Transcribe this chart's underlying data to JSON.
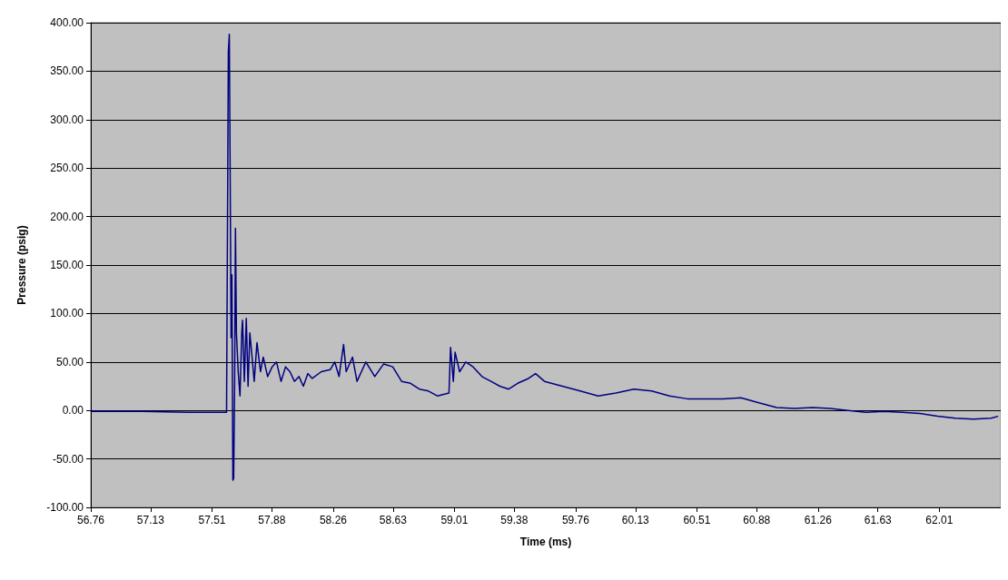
{
  "chart_data": {
    "type": "line",
    "xlabel": "Time (ms)",
    "ylabel": "Pressure (psig)",
    "xlim": [
      56.76,
      62.39
    ],
    "xticks": [
      56.76,
      57.13,
      57.51,
      57.88,
      58.26,
      58.63,
      59.01,
      59.38,
      59.76,
      60.13,
      60.51,
      60.88,
      61.26,
      61.63,
      62.01
    ],
    "ylim": [
      -100,
      400
    ],
    "yticks": [
      {
        "value": -100,
        "label": "-100.00"
      },
      {
        "value": -50,
        "label": "-50.00"
      },
      {
        "value": 0,
        "label": "0.00"
      },
      {
        "value": 50,
        "label": "50.00"
      },
      {
        "value": 100,
        "label": "100.00"
      },
      {
        "value": 150,
        "label": "150.00"
      },
      {
        "value": 200,
        "label": "200.00"
      },
      {
        "value": 250,
        "label": "250.00"
      },
      {
        "value": 300,
        "label": "300.00"
      },
      {
        "value": 350,
        "label": "350.00"
      },
      {
        "value": 400,
        "label": "400.00"
      }
    ],
    "grid": "y",
    "marker": "none",
    "line_style": "solid",
    "series": [
      {
        "color": "#000080",
        "x": [
          56.76,
          57.08,
          57.36,
          57.6,
          57.611,
          57.617,
          57.622,
          57.628,
          57.633,
          57.639,
          57.644,
          57.65,
          57.655,
          57.661,
          57.672,
          57.683,
          57.694,
          57.699,
          57.71,
          57.722,
          57.733,
          57.744,
          57.755,
          57.771,
          57.788,
          57.81,
          57.827,
          57.854,
          57.882,
          57.909,
          57.937,
          57.965,
          57.992,
          58.02,
          58.048,
          58.075,
          58.103,
          58.13,
          58.186,
          58.241,
          58.269,
          58.296,
          58.324,
          58.34,
          58.379,
          58.407,
          58.462,
          58.517,
          58.572,
          58.628,
          58.683,
          58.738,
          58.793,
          58.849,
          58.904,
          58.976,
          58.986,
          59.003,
          59.014,
          59.042,
          59.08,
          59.125,
          59.18,
          59.236,
          59.291,
          59.346,
          59.401,
          59.468,
          59.512,
          59.567,
          59.678,
          59.788,
          59.899,
          60.009,
          60.12,
          60.23,
          60.341,
          60.451,
          60.562,
          60.672,
          60.783,
          60.893,
          61.004,
          61.114,
          61.225,
          61.335,
          61.446,
          61.556,
          61.667,
          61.778,
          61.888,
          61.999,
          62.109,
          62.22,
          62.33,
          62.374
        ],
        "values": [
          -1,
          -1,
          -2,
          -2,
          370,
          388,
          250,
          75,
          140,
          -72,
          -70,
          30,
          188,
          80,
          40,
          15,
          80,
          93,
          30,
          95,
          25,
          80,
          60,
          30,
          70,
          40,
          55,
          35,
          45,
          50,
          30,
          45,
          40,
          30,
          35,
          25,
          38,
          33,
          40,
          42,
          50,
          35,
          68,
          40,
          55,
          30,
          50,
          35,
          48,
          45,
          30,
          28,
          22,
          20,
          15,
          18,
          65,
          30,
          60,
          40,
          50,
          45,
          35,
          30,
          25,
          22,
          28,
          33,
          38,
          30,
          25,
          20,
          15,
          18,
          22,
          20,
          15,
          12,
          12,
          12,
          13,
          8,
          3,
          2,
          3,
          2,
          0,
          -2,
          -1,
          -2,
          -3,
          -6,
          -8,
          -9,
          -8,
          -6
        ]
      }
    ]
  }
}
